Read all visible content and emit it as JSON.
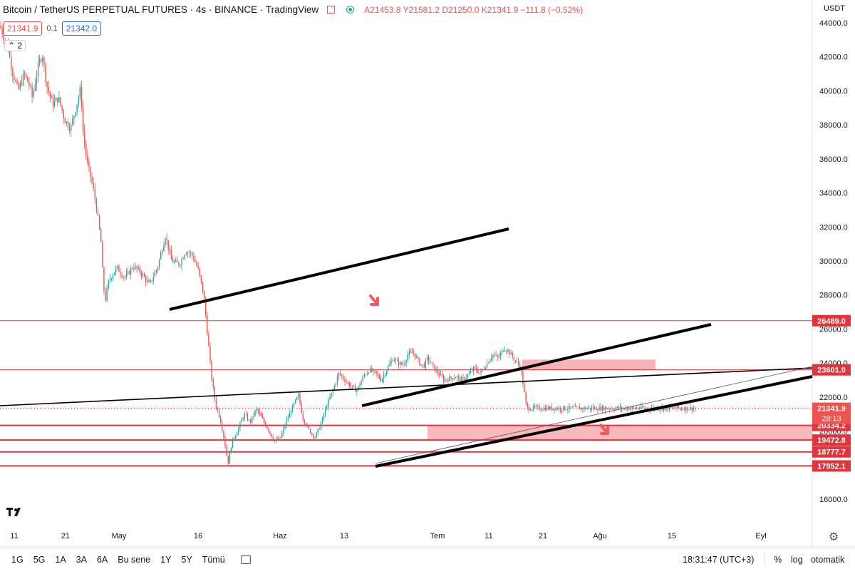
{
  "legend": {
    "symbol": "Bitcoin / TetherUS PERPETUAL FUTURES · 4s · BINANCE · TradingView",
    "ohlc": "A21453.8 Y21581.2 D21250.0 K21341.9 −111.8 (−0.52%)"
  },
  "quote": {
    "sell": "21341.9",
    "spread": "0.1",
    "buy": "21342.0"
  },
  "collapse_label": "2",
  "currency": "USDT",
  "bottom_bar": {
    "timeframes": [
      "1G",
      "5G",
      "1A",
      "3A",
      "6A",
      "Bu sene",
      "1Y",
      "5Y",
      "Tümü"
    ],
    "clock": "18:31:47 (UTC+3)",
    "percent": "%",
    "log": "log",
    "auto": "otomatik"
  },
  "chart_data": {
    "type": "candlestick",
    "y_axis": {
      "range": [
        15200,
        44800
      ],
      "ticks": [
        16000,
        18000,
        20000,
        22000,
        24000,
        26000,
        28000,
        30000,
        32000,
        34000,
        36000,
        38000,
        40000,
        42000,
        44000
      ],
      "tick_labels": [
        "16000.0",
        "18000.0",
        "20000.0",
        "22000.0",
        "24000.0",
        "26000.0",
        "28000.0",
        "30000.0",
        "32000.0",
        "34000.0",
        "36000.0",
        "38000.0",
        "40000.0",
        "42000.0",
        "44000.0"
      ]
    },
    "x_axis": {
      "tick_labels": [
        "11",
        "21",
        "May",
        "16",
        "Haz",
        "13",
        "Tem",
        "11",
        "21",
        "Ağu",
        "15",
        "Eyl"
      ]
    },
    "price_path": [
      [
        0.0,
        43800
      ],
      [
        0.02,
        42500
      ],
      [
        0.03,
        41200
      ],
      [
        0.045,
        40000
      ],
      [
        0.06,
        41000
      ],
      [
        0.075,
        40200
      ],
      [
        0.08,
        39600
      ],
      [
        0.095,
        41500
      ],
      [
        0.105,
        42200
      ],
      [
        0.115,
        40400
      ],
      [
        0.13,
        39200
      ],
      [
        0.145,
        39600
      ],
      [
        0.16,
        38300
      ],
      [
        0.175,
        37800
      ],
      [
        0.19,
        39200
      ],
      [
        0.2,
        40200
      ],
      [
        0.205,
        37800
      ],
      [
        0.215,
        35900
      ],
      [
        0.23,
        34400
      ],
      [
        0.24,
        33000
      ],
      [
        0.25,
        31200
      ],
      [
        0.255,
        29000
      ],
      [
        0.26,
        27600
      ],
      [
        0.27,
        28900
      ],
      [
        0.29,
        29600
      ],
      [
        0.31,
        29000
      ],
      [
        0.33,
        29700
      ],
      [
        0.35,
        29300
      ],
      [
        0.37,
        28600
      ],
      [
        0.39,
        29600
      ],
      [
        0.41,
        31500
      ],
      [
        0.425,
        30000
      ],
      [
        0.445,
        29800
      ],
      [
        0.46,
        30600
      ],
      [
        0.475,
        30400
      ],
      [
        0.49,
        29600
      ],
      [
        0.505,
        28000
      ],
      [
        0.515,
        25500
      ],
      [
        0.525,
        23000
      ],
      [
        0.535,
        21500
      ],
      [
        0.545,
        20800
      ],
      [
        0.555,
        19600
      ],
      [
        0.565,
        18100
      ],
      [
        0.575,
        19400
      ],
      [
        0.59,
        20100
      ],
      [
        0.605,
        21000
      ],
      [
        0.62,
        20500
      ],
      [
        0.635,
        21300
      ],
      [
        0.65,
        20700
      ],
      [
        0.665,
        20100
      ],
      [
        0.68,
        19400
      ],
      [
        0.695,
        19600
      ],
      [
        0.71,
        20600
      ],
      [
        0.725,
        21400
      ],
      [
        0.74,
        22100
      ],
      [
        0.75,
        20800
      ],
      [
        0.765,
        20100
      ],
      [
        0.78,
        19600
      ],
      [
        0.795,
        20400
      ],
      [
        0.81,
        21500
      ],
      [
        0.825,
        22400
      ],
      [
        0.84,
        23400
      ],
      [
        0.855,
        23000
      ],
      [
        0.87,
        22600
      ],
      [
        0.885,
        22400
      ],
      [
        0.9,
        23200
      ],
      [
        0.915,
        23600
      ],
      [
        0.93,
        23400
      ],
      [
        0.945,
        23000
      ],
      [
        0.96,
        23700
      ],
      [
        0.975,
        24300
      ],
      [
        0.985,
        24000
      ],
      [
        1.0,
        23900
      ],
      [
        1.01,
        24500
      ],
      [
        1.025,
        24600
      ],
      [
        1.04,
        24000
      ],
      [
        1.05,
        23800
      ],
      [
        1.06,
        24300
      ],
      [
        1.075,
        23700
      ],
      [
        1.09,
        23300
      ],
      [
        1.1,
        23000
      ],
      [
        1.115,
        23100
      ],
      [
        1.13,
        23200
      ],
      [
        1.145,
        23000
      ],
      [
        1.16,
        23300
      ],
      [
        1.175,
        23700
      ],
      [
        1.19,
        23400
      ],
      [
        1.205,
        23900
      ],
      [
        1.22,
        24500
      ],
      [
        1.235,
        24300
      ],
      [
        1.25,
        24900
      ],
      [
        1.26,
        24700
      ],
      [
        1.275,
        24200
      ],
      [
        1.29,
        23800
      ],
      [
        1.305,
        21341.9
      ]
    ],
    "horizontal_levels": [
      {
        "price": 26489.0,
        "label": "26489.0",
        "thick": false
      },
      {
        "price": 23601.0,
        "label": "23601.0",
        "thick": false
      },
      {
        "price": 20334.2,
        "label": "20334.2",
        "thick": true
      },
      {
        "price": 19472.8,
        "label": "19472.8",
        "thick": true
      },
      {
        "price": 18777.7,
        "label": "18777.7",
        "thick": true
      },
      {
        "price": 17952.1,
        "label": "17952.1",
        "thick": true
      }
    ],
    "current_price": {
      "label": "21341.9",
      "countdown": "28:13"
    },
    "colors": {
      "up": "#26a69a",
      "down": "#ef5350",
      "level": "#e5333b",
      "zone": "#f7a0a6",
      "trend": "#000000"
    }
  }
}
